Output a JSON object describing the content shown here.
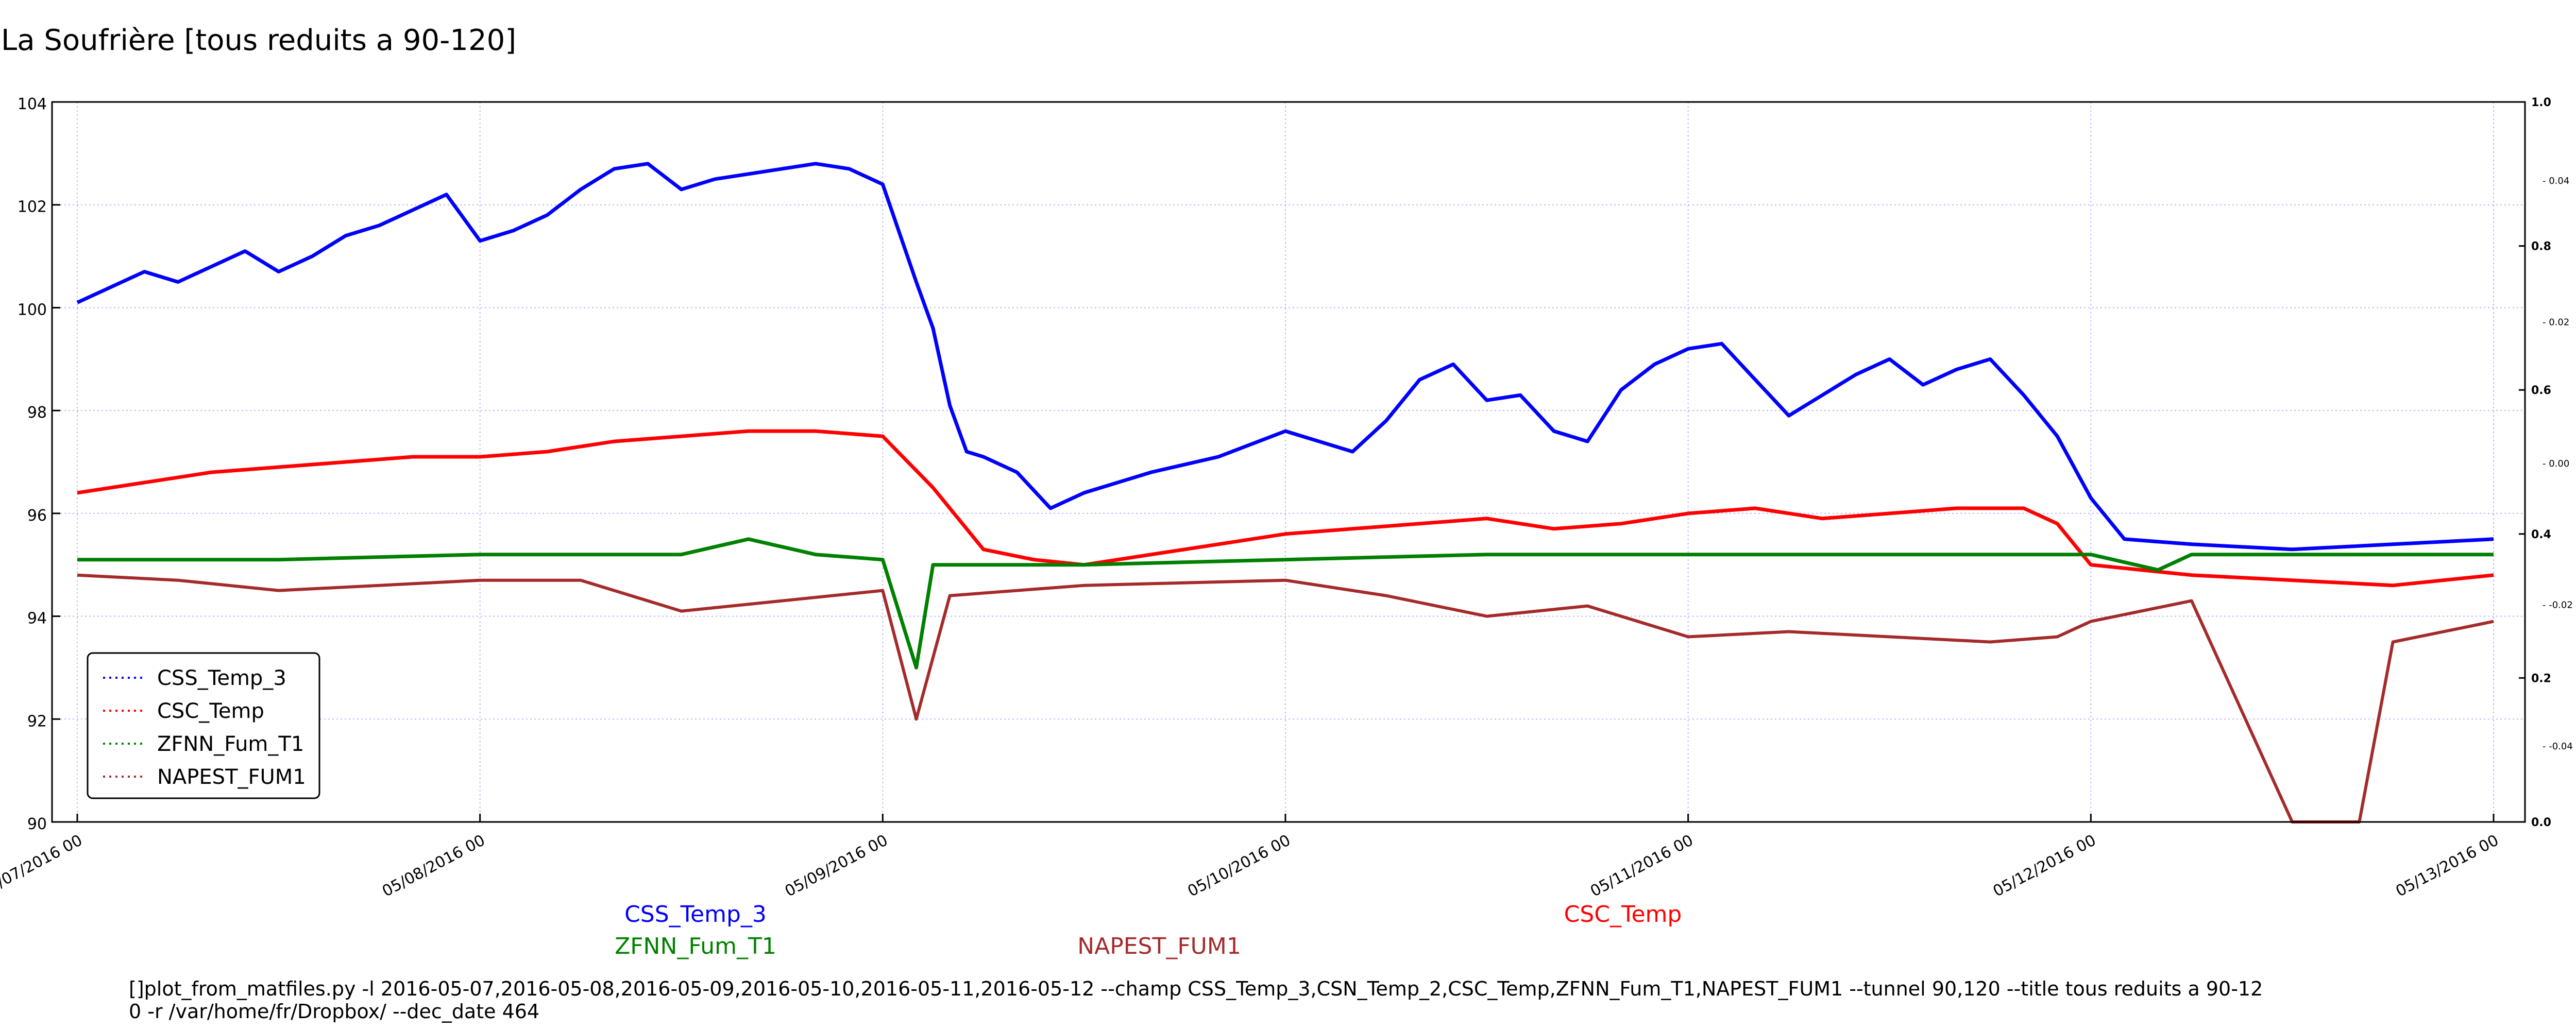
{
  "chart_data": {
    "type": "line",
    "title": "La Soufrière [tous reduits a 90-120]",
    "xlabel": "",
    "ylabel": "",
    "x_range": [
      "2016-05-07 00:00",
      "2016-05-13 00:00"
    ],
    "x_ticks": [
      "05/07/2016 00",
      "05/08/2016 00",
      "05/09/2016 00",
      "05/10/2016 00",
      "05/11/2016 00",
      "05/12/2016 00",
      "05/13/2016 00"
    ],
    "ylim": [
      90,
      104
    ],
    "y_ticks": [
      "90",
      "92",
      "94",
      "96",
      "98",
      "100",
      "102",
      "104"
    ],
    "right_axis_ticks_a": [
      "0.0",
      "0.2",
      "0.4",
      "0.6",
      "0.8",
      "1.0"
    ],
    "right_axis_ticks_b": [
      "-0.04",
      "-0.02",
      "0.00",
      "0.02",
      "0.04"
    ],
    "grid": true,
    "legend_position": "lower-left",
    "series": [
      {
        "name": "CSS_Temp_3",
        "color": "#0000ff",
        "values": [
          [
            "2016-05-07 00:00",
            100.1
          ],
          [
            "2016-05-07 02:00",
            100.4
          ],
          [
            "2016-05-07 04:00",
            100.7
          ],
          [
            "2016-05-07 06:00",
            100.5
          ],
          [
            "2016-05-07 08:00",
            100.8
          ],
          [
            "2016-05-07 10:00",
            101.1
          ],
          [
            "2016-05-07 12:00",
            100.7
          ],
          [
            "2016-05-07 14:00",
            101.0
          ],
          [
            "2016-05-07 16:00",
            101.4
          ],
          [
            "2016-05-07 18:00",
            101.6
          ],
          [
            "2016-05-07 20:00",
            101.9
          ],
          [
            "2016-05-07 22:00",
            102.2
          ],
          [
            "2016-05-08 00:00",
            101.3
          ],
          [
            "2016-05-08 02:00",
            101.5
          ],
          [
            "2016-05-08 04:00",
            101.8
          ],
          [
            "2016-05-08 06:00",
            102.3
          ],
          [
            "2016-05-08 08:00",
            102.7
          ],
          [
            "2016-05-08 10:00",
            102.8
          ],
          [
            "2016-05-08 12:00",
            102.3
          ],
          [
            "2016-05-08 14:00",
            102.5
          ],
          [
            "2016-05-08 16:00",
            102.6
          ],
          [
            "2016-05-08 18:00",
            102.7
          ],
          [
            "2016-05-08 20:00",
            102.8
          ],
          [
            "2016-05-08 22:00",
            102.7
          ],
          [
            "2016-05-09 00:00",
            102.4
          ],
          [
            "2016-05-09 02:00",
            100.5
          ],
          [
            "2016-05-09 03:00",
            99.6
          ],
          [
            "2016-05-09 04:00",
            98.1
          ],
          [
            "2016-05-09 05:00",
            97.2
          ],
          [
            "2016-05-09 06:00",
            97.1
          ],
          [
            "2016-05-09 08:00",
            96.8
          ],
          [
            "2016-05-09 10:00",
            96.1
          ],
          [
            "2016-05-09 12:00",
            96.4
          ],
          [
            "2016-05-09 16:00",
            96.8
          ],
          [
            "2016-05-09 20:00",
            97.1
          ],
          [
            "2016-05-10 00:00",
            97.6
          ],
          [
            "2016-05-10 04:00",
            97.2
          ],
          [
            "2016-05-10 06:00",
            97.8
          ],
          [
            "2016-05-10 08:00",
            98.6
          ],
          [
            "2016-05-10 10:00",
            98.9
          ],
          [
            "2016-05-10 12:00",
            98.2
          ],
          [
            "2016-05-10 14:00",
            98.3
          ],
          [
            "2016-05-10 16:00",
            97.6
          ],
          [
            "2016-05-10 18:00",
            97.4
          ],
          [
            "2016-05-10 20:00",
            98.4
          ],
          [
            "2016-05-10 22:00",
            98.9
          ],
          [
            "2016-05-11 00:00",
            99.2
          ],
          [
            "2016-05-11 02:00",
            99.3
          ],
          [
            "2016-05-11 04:00",
            98.6
          ],
          [
            "2016-05-11 06:00",
            97.9
          ],
          [
            "2016-05-11 08:00",
            98.3
          ],
          [
            "2016-05-11 10:00",
            98.7
          ],
          [
            "2016-05-11 12:00",
            99.0
          ],
          [
            "2016-05-11 14:00",
            98.5
          ],
          [
            "2016-05-11 16:00",
            98.8
          ],
          [
            "2016-05-11 18:00",
            99.0
          ],
          [
            "2016-05-11 20:00",
            98.3
          ],
          [
            "2016-05-11 22:00",
            97.5
          ],
          [
            "2016-05-12 00:00",
            96.3
          ],
          [
            "2016-05-12 02:00",
            95.5
          ],
          [
            "2016-05-12 06:00",
            95.4
          ],
          [
            "2016-05-12 12:00",
            95.3
          ],
          [
            "2016-05-12 18:00",
            95.4
          ],
          [
            "2016-05-13 00:00",
            95.5
          ]
        ]
      },
      {
        "name": "CSC_Temp",
        "color": "#ff0000",
        "values": [
          [
            "2016-05-07 00:00",
            96.4
          ],
          [
            "2016-05-07 04:00",
            96.6
          ],
          [
            "2016-05-07 08:00",
            96.8
          ],
          [
            "2016-05-07 12:00",
            96.9
          ],
          [
            "2016-05-07 16:00",
            97.0
          ],
          [
            "2016-05-07 20:00",
            97.1
          ],
          [
            "2016-05-08 00:00",
            97.1
          ],
          [
            "2016-05-08 04:00",
            97.2
          ],
          [
            "2016-05-08 08:00",
            97.4
          ],
          [
            "2016-05-08 12:00",
            97.5
          ],
          [
            "2016-05-08 16:00",
            97.6
          ],
          [
            "2016-05-08 20:00",
            97.6
          ],
          [
            "2016-05-09 00:00",
            97.5
          ],
          [
            "2016-05-09 03:00",
            96.5
          ],
          [
            "2016-05-09 06:00",
            95.3
          ],
          [
            "2016-05-09 09:00",
            95.1
          ],
          [
            "2016-05-09 12:00",
            95.0
          ],
          [
            "2016-05-09 16:00",
            95.2
          ],
          [
            "2016-05-09 20:00",
            95.4
          ],
          [
            "2016-05-10 00:00",
            95.6
          ],
          [
            "2016-05-10 04:00",
            95.7
          ],
          [
            "2016-05-10 08:00",
            95.8
          ],
          [
            "2016-05-10 12:00",
            95.9
          ],
          [
            "2016-05-10 16:00",
            95.7
          ],
          [
            "2016-05-10 20:00",
            95.8
          ],
          [
            "2016-05-11 00:00",
            96.0
          ],
          [
            "2016-05-11 04:00",
            96.1
          ],
          [
            "2016-05-11 08:00",
            95.9
          ],
          [
            "2016-05-11 12:00",
            96.0
          ],
          [
            "2016-05-11 16:00",
            96.1
          ],
          [
            "2016-05-11 20:00",
            96.1
          ],
          [
            "2016-05-11 22:00",
            95.8
          ],
          [
            "2016-05-12 00:00",
            95.0
          ],
          [
            "2016-05-12 06:00",
            94.8
          ],
          [
            "2016-05-12 12:00",
            94.7
          ],
          [
            "2016-05-12 18:00",
            94.6
          ],
          [
            "2016-05-13 00:00",
            94.8
          ]
        ]
      },
      {
        "name": "ZFNN_Fum_T1",
        "color": "#008000",
        "values": [
          [
            "2016-05-07 00:00",
            95.1
          ],
          [
            "2016-05-07 12:00",
            95.1
          ],
          [
            "2016-05-08 00:00",
            95.2
          ],
          [
            "2016-05-08 12:00",
            95.2
          ],
          [
            "2016-05-08 16:00",
            95.5
          ],
          [
            "2016-05-08 20:00",
            95.2
          ],
          [
            "2016-05-09 00:00",
            95.1
          ],
          [
            "2016-05-09 02:00",
            93.0
          ],
          [
            "2016-05-09 03:00",
            95.0
          ],
          [
            "2016-05-09 12:00",
            95.0
          ],
          [
            "2016-05-10 00:00",
            95.1
          ],
          [
            "2016-05-10 12:00",
            95.2
          ],
          [
            "2016-05-11 00:00",
            95.2
          ],
          [
            "2016-05-11 12:00",
            95.2
          ],
          [
            "2016-05-12 00:00",
            95.2
          ],
          [
            "2016-05-12 04:00",
            94.9
          ],
          [
            "2016-05-12 06:00",
            95.2
          ],
          [
            "2016-05-12 12:00",
            95.2
          ],
          [
            "2016-05-13 00:00",
            95.2
          ]
        ]
      },
      {
        "name": "NAPEST_FUM1",
        "color": "#a52a2a",
        "values": [
          [
            "2016-05-07 00:00",
            94.8
          ],
          [
            "2016-05-07 06:00",
            94.7
          ],
          [
            "2016-05-07 12:00",
            94.5
          ],
          [
            "2016-05-07 18:00",
            94.6
          ],
          [
            "2016-05-08 00:00",
            94.7
          ],
          [
            "2016-05-08 06:00",
            94.7
          ],
          [
            "2016-05-08 12:00",
            94.1
          ],
          [
            "2016-05-08 18:00",
            94.3
          ],
          [
            "2016-05-09 00:00",
            94.5
          ],
          [
            "2016-05-09 02:00",
            92.0
          ],
          [
            "2016-05-09 04:00",
            94.4
          ],
          [
            "2016-05-09 12:00",
            94.6
          ],
          [
            "2016-05-10 00:00",
            94.7
          ],
          [
            "2016-05-10 06:00",
            94.4
          ],
          [
            "2016-05-10 12:00",
            94.0
          ],
          [
            "2016-05-10 18:00",
            94.2
          ],
          [
            "2016-05-11 00:00",
            93.6
          ],
          [
            "2016-05-11 06:00",
            93.7
          ],
          [
            "2016-05-11 12:00",
            93.6
          ],
          [
            "2016-05-11 18:00",
            93.5
          ],
          [
            "2016-05-11 22:00",
            93.6
          ],
          [
            "2016-05-12 00:00",
            93.9
          ],
          [
            "2016-05-12 06:00",
            94.3
          ],
          [
            "2016-05-12 12:00",
            90.0
          ],
          [
            "2016-05-12 16:00",
            90.0
          ],
          [
            "2016-05-12 18:00",
            93.5
          ],
          [
            "2016-05-13 00:00",
            93.9
          ]
        ]
      }
    ],
    "bottom_labels": [
      {
        "text": "CSS_Temp_3",
        "color": "#0000ff"
      },
      {
        "text": "ZFNN_Fum_T1",
        "color": "#008000"
      },
      {
        "text": "NAPEST_FUM1",
        "color": "#a52a2a"
      },
      {
        "text": "CSC_Temp",
        "color": "#ff0000"
      }
    ]
  },
  "command_line": "[]plot_from_matfiles.py -l 2016-05-07,2016-05-08,2016-05-09,2016-05-10,2016-05-11,2016-05-12 --champ CSS_Temp_3,CSN_Temp_2,CSC_Temp,ZFNN_Fum_T1,NAPEST_FUM1 --tunnel 90,120 --title tous reduits a 90-12\n0 -r /var/home/fr/Dropbox/ --dec_date 464"
}
